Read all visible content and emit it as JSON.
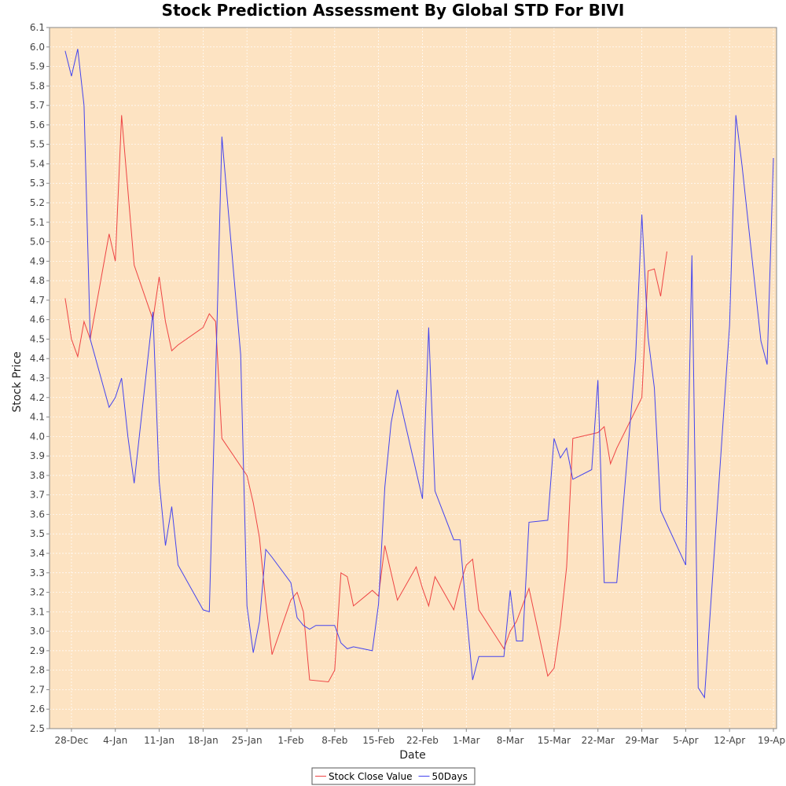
{
  "chart_data": {
    "type": "line",
    "title": "Stock Prediction Assessment By Global STD For BIVI",
    "xlabel": "Date",
    "ylabel": "Stock Price",
    "ylim": [
      2.5,
      6.1
    ],
    "yticks": [
      2.5,
      2.6,
      2.7,
      2.8,
      2.9,
      3.0,
      3.1,
      3.2,
      3.3,
      3.4,
      3.5,
      3.6,
      3.7,
      3.8,
      3.9,
      4.0,
      4.1,
      4.2,
      4.3,
      4.4,
      4.5,
      4.6,
      4.7,
      4.8,
      4.9,
      5.0,
      5.1,
      5.2,
      5.3,
      5.4,
      5.5,
      5.6,
      5.7,
      5.8,
      5.9,
      6.0,
      6.1
    ],
    "xlim_days": [
      -3.5,
      112.5
    ],
    "xtick_labels": [
      "28-Dec",
      "4-Jan",
      "11-Jan",
      "18-Jan",
      "25-Jan",
      "1-Feb",
      "8-Feb",
      "15-Feb",
      "22-Feb",
      "1-Mar",
      "8-Mar",
      "15-Mar",
      "22-Mar",
      "29-Mar",
      "5-Apr",
      "12-Apr",
      "19-Apr"
    ],
    "xtick_days": [
      0,
      7,
      14,
      21,
      28,
      35,
      42,
      49,
      56,
      63,
      70,
      77,
      84,
      91,
      98,
      105,
      112
    ],
    "grid": true,
    "legend": "bottom-center",
    "background_color": "#fde3c2",
    "series": [
      {
        "name": "Stock Close Value",
        "color": "#ee4444",
        "x": [
          -1,
          0,
          1,
          2,
          3,
          6,
          7,
          8,
          10,
          13,
          14,
          15,
          16,
          17,
          21,
          22,
          23,
          24,
          28,
          29,
          30,
          31,
          32,
          35,
          36,
          37,
          38,
          41,
          42,
          43,
          44,
          45,
          48,
          49,
          50,
          52,
          55,
          56,
          57,
          58,
          61,
          62,
          63,
          64,
          65,
          69,
          70,
          71,
          73,
          76,
          77,
          78,
          79,
          80,
          84,
          85,
          86,
          87,
          91,
          92,
          93,
          94,
          95
        ],
        "y": [
          4.71,
          4.5,
          4.41,
          4.59,
          4.5,
          5.04,
          4.9,
          5.65,
          4.88,
          4.6,
          4.82,
          4.59,
          4.44,
          4.47,
          4.56,
          4.63,
          4.59,
          3.99,
          3.8,
          3.66,
          3.48,
          3.15,
          2.88,
          3.16,
          3.2,
          3.1,
          2.75,
          2.74,
          2.8,
          3.3,
          3.28,
          3.13,
          3.21,
          3.18,
          3.44,
          3.16,
          3.33,
          3.22,
          3.13,
          3.28,
          3.11,
          3.24,
          3.34,
          3.37,
          3.11,
          2.91,
          3.0,
          3.05,
          3.22,
          2.77,
          2.81,
          3.03,
          3.33,
          3.99,
          4.02,
          4.05,
          3.86,
          3.94,
          4.2,
          4.85,
          4.86,
          4.72,
          4.95
        ]
      },
      {
        "name": "50Days",
        "color": "#4444ee",
        "x": [
          -1,
          0,
          1,
          2,
          3,
          6,
          7,
          8,
          9,
          10,
          13,
          14,
          15,
          16,
          17,
          21,
          22,
          23,
          24,
          27,
          28,
          29,
          30,
          31,
          32,
          35,
          36,
          37,
          38,
          39,
          42,
          43,
          44,
          45,
          48,
          49,
          50,
          51,
          52,
          56,
          57,
          58,
          61,
          62,
          63,
          64,
          65,
          69,
          70,
          71,
          72,
          73,
          76,
          77,
          78,
          79,
          80,
          83,
          84,
          85,
          87,
          90,
          91,
          92,
          93,
          94,
          98,
          99,
          100,
          101,
          105,
          106,
          107,
          110,
          111,
          112
        ],
        "y": [
          5.98,
          5.85,
          5.99,
          5.7,
          4.5,
          4.15,
          4.2,
          4.3,
          4.0,
          3.76,
          4.64,
          3.77,
          3.44,
          3.64,
          3.34,
          3.11,
          3.1,
          4.3,
          5.54,
          4.42,
          3.13,
          2.89,
          3.05,
          3.42,
          3.38,
          3.25,
          3.07,
          3.03,
          3.01,
          3.03,
          3.03,
          2.94,
          2.91,
          2.92,
          2.9,
          3.14,
          3.74,
          4.07,
          4.24,
          3.68,
          4.56,
          3.72,
          3.47,
          3.47,
          3.1,
          2.75,
          2.87,
          2.87,
          3.21,
          2.95,
          2.95,
          3.56,
          3.57,
          3.99,
          3.89,
          3.94,
          3.78,
          3.83,
          4.29,
          3.25,
          3.25,
          4.4,
          5.14,
          4.51,
          4.25,
          3.62,
          3.34,
          4.93,
          2.71,
          2.66,
          4.57,
          5.65,
          5.39,
          4.49,
          4.37,
          5.43
        ]
      }
    ]
  }
}
